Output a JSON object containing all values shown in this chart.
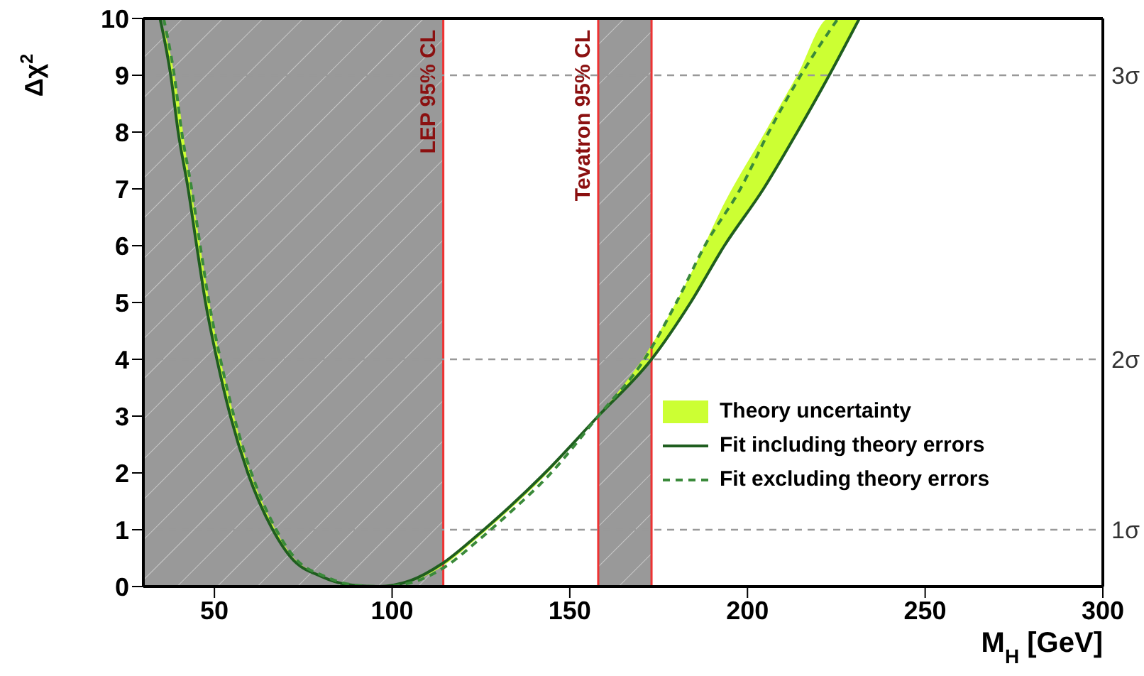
{
  "chart_data": {
    "type": "line",
    "xlabel": "M$_{H}$ [GeV]",
    "ylabel": "Δχ$^{2}$",
    "xlim": [
      30,
      300
    ],
    "xticks": [
      50,
      100,
      150,
      200,
      250,
      300
    ],
    "ylim": [
      0,
      10
    ],
    "yticks": [
      0,
      1,
      2,
      3,
      4,
      5,
      6,
      7,
      8,
      9,
      10
    ],
    "grid": false,
    "legend": "bottom right",
    "marker": "none",
    "series": [
      {
        "name": "Fit including theory errors",
        "line_style": "solid",
        "color": "#1f5e1f",
        "x": [
          34.7,
          37.7,
          39.8,
          42.6,
          45,
          47.5,
          50.7,
          54.5,
          59.4,
          66.4,
          71.7,
          80,
          88,
          96,
          105,
          114,
          123,
          133,
          143,
          158,
          173,
          184,
          193.5,
          204.5,
          214,
          223,
          231.5
        ],
        "values": [
          10,
          9,
          8,
          7,
          6,
          5,
          4,
          3,
          2,
          1,
          0.5,
          0.18,
          0.03,
          0,
          0.1,
          0.4,
          0.85,
          1.4,
          2,
          3,
          4,
          5,
          6,
          7,
          8,
          9,
          10
        ],
        "lower": [
          10,
          9,
          8,
          7,
          6,
          5,
          4,
          3,
          2,
          1,
          0.5,
          0.18,
          0.03,
          0,
          0.08,
          0.35,
          0.8,
          1.35,
          1.95,
          3,
          4,
          5,
          6,
          7,
          8,
          9,
          10
        ],
        "upper": [
          10,
          9.35,
          8.6,
          7.35,
          6.4,
          5.4,
          4.3,
          3.25,
          2.15,
          1.1,
          0.55,
          0.2,
          0.04,
          0,
          0.1,
          0.4,
          0.85,
          1.4,
          2,
          3,
          4.25,
          5.5,
          6.75,
          7.95,
          9,
          10,
          10
        ]
      },
      {
        "name": "Fit excluding theory errors",
        "line_style": "dashed",
        "color": "#3a8a3a",
        "x": [
          35.7,
          38.7,
          40.8,
          43.6,
          46,
          48.5,
          51.7,
          55.5,
          60.4,
          67.4,
          72.7,
          81,
          89,
          97,
          106,
          115,
          124,
          134,
          144,
          158,
          171,
          180,
          188,
          198,
          206,
          215,
          225.5
        ],
        "values": [
          10,
          9,
          8,
          7,
          6,
          5,
          4,
          3,
          2,
          1,
          0.5,
          0.18,
          0.03,
          0,
          0.08,
          0.35,
          0.8,
          1.35,
          1.95,
          3,
          4,
          5,
          6,
          7,
          8,
          9,
          10
        ]
      },
      {
        "name": "Theory uncertainty",
        "type": "area",
        "color": "#ccff33"
      }
    ],
    "bands": [
      {
        "axis": "x",
        "from": 30,
        "to": 114.4,
        "color": "#999999"
      },
      {
        "axis": "x",
        "from": 158,
        "to": 173,
        "color": "#999999"
      }
    ],
    "ref_lines": [
      {
        "axis": "x",
        "value": 114.4,
        "label": "LEP 95% CL",
        "color": "#ee3333"
      },
      {
        "axis": "x",
        "value": 158,
        "label": "Tevatron 95% CL",
        "color": "#ee3333"
      },
      {
        "axis": "x",
        "value": 173,
        "color": "#ee3333"
      },
      {
        "axis": "y",
        "value": 1,
        "label": "1σ",
        "color": "#999999",
        "line_style": "dashed"
      },
      {
        "axis": "y",
        "value": 4,
        "label": "2σ",
        "color": "#999999",
        "line_style": "dashed"
      },
      {
        "axis": "y",
        "value": 9,
        "label": "3σ",
        "color": "#999999",
        "line_style": "dashed"
      }
    ]
  }
}
